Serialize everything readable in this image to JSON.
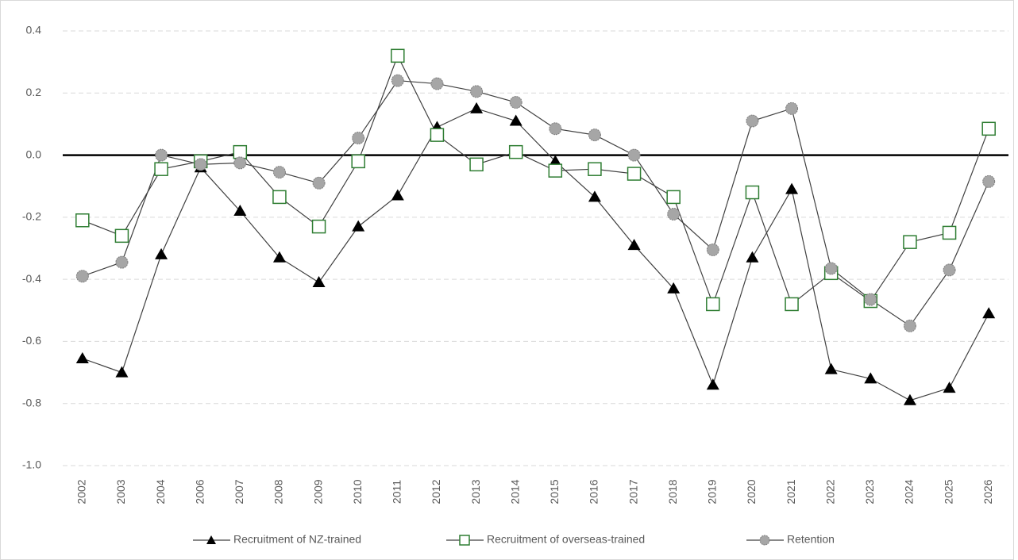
{
  "chart_data": {
    "type": "line",
    "categories": [
      "2002",
      "2003",
      "2004",
      "2006",
      "2007",
      "2008",
      "2009",
      "2010",
      "2011",
      "2012",
      "2013",
      "2014",
      "2015",
      "2016",
      "2017",
      "2018",
      "2019",
      "2020",
      "2021",
      "2022",
      "2023",
      "2024",
      "2025",
      "2026"
    ],
    "series": [
      {
        "name": "Recruitment of NZ-trained",
        "color": "#000000",
        "marker": "triangle",
        "values": [
          -0.655,
          -0.7,
          -0.32,
          -0.04,
          -0.18,
          -0.33,
          -0.41,
          -0.23,
          -0.13,
          0.09,
          0.15,
          0.11,
          -0.02,
          -0.135,
          -0.29,
          -0.43,
          -0.74,
          -0.33,
          -0.11,
          -0.69,
          -0.72,
          -0.79,
          -0.75,
          -0.51
        ]
      },
      {
        "name": "Recruitment of overseas-trained",
        "color": "#2e7d32",
        "marker": "square",
        "values": [
          -0.21,
          -0.26,
          -0.045,
          -0.02,
          0.01,
          -0.135,
          -0.23,
          -0.02,
          0.32,
          0.065,
          -0.03,
          0.01,
          -0.05,
          -0.045,
          -0.06,
          -0.135,
          -0.48,
          -0.12,
          -0.48,
          -0.38,
          -0.47,
          -0.28,
          -0.25,
          0.085
        ]
      },
      {
        "name": "Retention",
        "color": "#a6a6a6",
        "marker": "circle",
        "values": [
          -0.39,
          -0.345,
          0.0,
          -0.03,
          -0.025,
          -0.055,
          -0.09,
          0.055,
          0.24,
          0.23,
          0.205,
          0.17,
          0.085,
          0.065,
          0.0,
          -0.19,
          -0.305,
          0.11,
          0.15,
          -0.365,
          -0.465,
          -0.55,
          -0.37,
          -0.085
        ]
      }
    ],
    "ylim": [
      -1.0,
      0.4
    ],
    "yticks": [
      {
        "value": -1.0,
        "label": "-1.0"
      },
      -0.8,
      -0.6,
      -0.4,
      -0.2,
      {
        "value": 0,
        "label": "0.0"
      },
      0.2,
      0.4
    ],
    "grid": true,
    "legend": "bottom"
  }
}
